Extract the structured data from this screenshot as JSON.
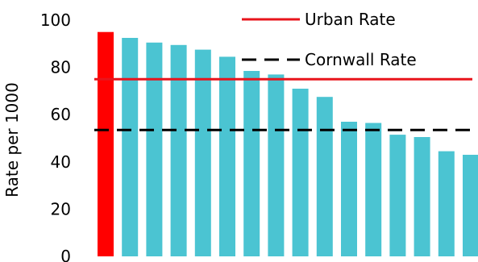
{
  "chart_data": {
    "type": "bar",
    "title": "",
    "xlabel": "",
    "ylabel": "Rate per 1000",
    "ylim": [
      0,
      100
    ],
    "yticks": [
      0,
      20,
      40,
      60,
      80,
      100
    ],
    "grid": false,
    "categories": [
      "",
      "",
      "",
      "",
      "",
      "",
      "",
      "",
      "",
      "",
      "",
      "",
      "",
      "",
      "",
      ""
    ],
    "values": [
      95,
      92.5,
      90.5,
      89.5,
      87.5,
      84.5,
      78.5,
      77,
      71,
      67.5,
      57,
      56.5,
      51.5,
      50.5,
      44.5,
      43
    ],
    "bar_colors": [
      "#ff0000",
      "#4bc4d2",
      "#4bc4d2",
      "#4bc4d2",
      "#4bc4d2",
      "#4bc4d2",
      "#4bc4d2",
      "#4bc4d2",
      "#4bc4d2",
      "#4bc4d2",
      "#4bc4d2",
      "#4bc4d2",
      "#4bc4d2",
      "#4bc4d2",
      "#4bc4d2",
      "#4bc4d2"
    ],
    "reference_lines": [
      {
        "name": "Urban Rate",
        "value": 75,
        "color": "#e8141c",
        "style": "solid"
      },
      {
        "name": "Cornwall Rate",
        "value": 53.5,
        "color": "#000000",
        "style": "dashed"
      }
    ],
    "legend": {
      "placement": "top-right"
    }
  }
}
